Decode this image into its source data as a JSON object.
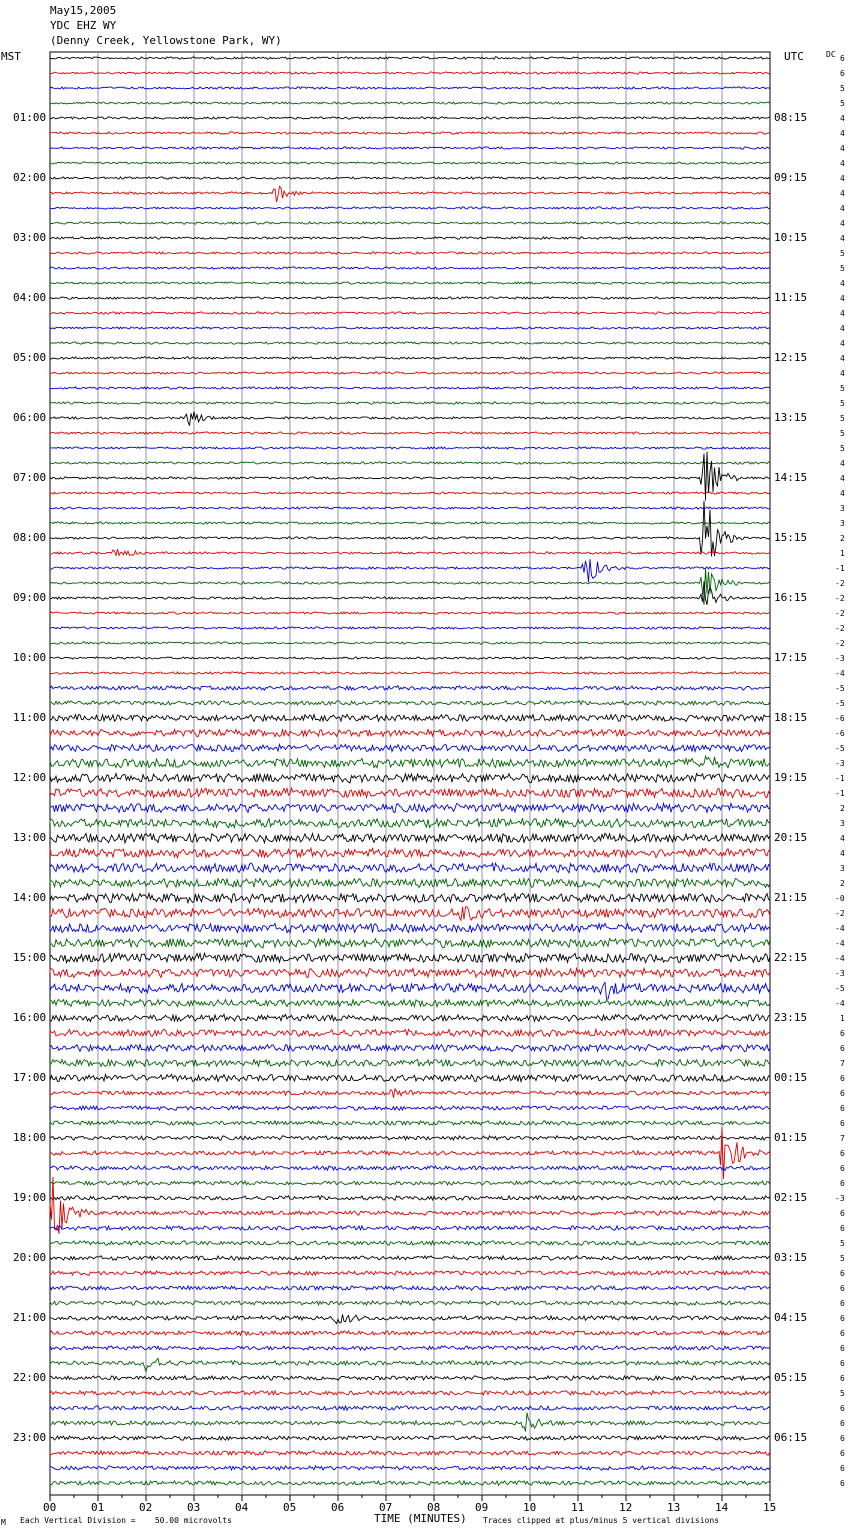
{
  "header": {
    "date": "May15,2005",
    "station": "YDC EHZ WY",
    "location": "(Denny Creek, Yellowstone Park, WY)"
  },
  "left_tz": "MST",
  "right_tz": "UTC",
  "dc_label": "DC",
  "footer": {
    "scale_note": "Each Vertical Division =    50.00 microvolts",
    "xlabel": "TIME (MINUTES)",
    "clip_note": "Traces clipped at plus/minus 5 vertical divisions",
    "corner_mark": "M"
  },
  "colors": {
    "cycle": [
      "#000000",
      "#e00000",
      "#0000e0",
      "#006400"
    ],
    "grid": "#9090b0"
  },
  "chart_data": {
    "type": "line",
    "title": "YDC EHZ WY",
    "xlabel": "TIME (MINUTES)",
    "xlim": [
      0,
      15
    ],
    "x_ticks": [
      "00",
      "01",
      "02",
      "03",
      "04",
      "05",
      "06",
      "07",
      "08",
      "09",
      "10",
      "11",
      "12",
      "13",
      "14",
      "15"
    ],
    "rows_per_hour": 4,
    "left_hour_labels": [
      "01:00",
      "02:00",
      "03:00",
      "04:00",
      "05:00",
      "06:00",
      "07:00",
      "08:00",
      "09:00",
      "10:00",
      "11:00",
      "12:00",
      "13:00",
      "14:00",
      "15:00",
      "16:00",
      "17:00",
      "18:00",
      "19:00",
      "20:00",
      "21:00",
      "22:00",
      "23:00"
    ],
    "right_hour_labels": [
      "08:15",
      "09:15",
      "10:15",
      "11:15",
      "12:15",
      "13:15",
      "14:15",
      "15:15",
      "16:15",
      "17:15",
      "18:15",
      "19:15",
      "20:15",
      "21:15",
      "22:15",
      "23:15",
      "00:15",
      "01:15",
      "02:15",
      "03:15",
      "04:15",
      "05:15",
      "06:15"
    ],
    "dc_offsets": [
      "6",
      "6",
      "5",
      "5",
      "4",
      "4",
      "4",
      "4",
      "4",
      "4",
      "4",
      "4",
      "4",
      "5",
      "5",
      "4",
      "4",
      "4",
      "4",
      "4",
      "4",
      "4",
      "5",
      "5",
      "5",
      "5",
      "5",
      "4",
      "4",
      "4",
      "3",
      "3",
      "2",
      "1",
      "-1",
      "-2",
      "-2",
      "-2",
      "-2",
      "-2",
      "-3",
      "-4",
      "-5",
      "-5",
      "-6",
      "-6",
      "-5",
      "-3",
      "-1",
      "-1",
      "2",
      "3",
      "4",
      "4",
      "3",
      "2",
      "-0",
      "-2",
      "-4",
      "-4",
      "-4",
      "-3",
      "-5",
      "-4",
      "1",
      "6",
      "6",
      "7",
      "6",
      "6",
      "6",
      "6",
      "7",
      "6",
      "6",
      "6",
      "-3",
      "6",
      "6",
      "5",
      "5",
      "6",
      "6",
      "6",
      "6",
      "6",
      "6",
      "6",
      "6",
      "5",
      "6",
      "6",
      "6",
      "6",
      "6",
      "6"
    ],
    "noise_rows": [
      0,
      0,
      0,
      0,
      0,
      0,
      0,
      0,
      0,
      0,
      0,
      0,
      0,
      0,
      0,
      0,
      0,
      0,
      0,
      0,
      0,
      0,
      0,
      0,
      0,
      0,
      0,
      0,
      0,
      0,
      0,
      0,
      0,
      0,
      0,
      0,
      0,
      0,
      0,
      0,
      0,
      0,
      1,
      1,
      2,
      2,
      2,
      3,
      3,
      3,
      3,
      3,
      3,
      3,
      3,
      3,
      3,
      3,
      3,
      3,
      3,
      3,
      3,
      2,
      2,
      2,
      2,
      2,
      2,
      1,
      1,
      1,
      1,
      1,
      1,
      1,
      1,
      1,
      1,
      1,
      1,
      1,
      1,
      1,
      1,
      1,
      1,
      1,
      1,
      1,
      1,
      1,
      1,
      1,
      1,
      1
    ],
    "events": [
      {
        "row": 9,
        "minute": 4.7,
        "amp": 10
      },
      {
        "row": 24,
        "minute": 2.85,
        "amp": 12
      },
      {
        "row": 28,
        "minute": 13.6,
        "amp": 55
      },
      {
        "row": 32,
        "minute": 13.6,
        "amp": 60
      },
      {
        "row": 33,
        "minute": 1.35,
        "amp": 8
      },
      {
        "row": 34,
        "minute": 11.15,
        "amp": 22
      },
      {
        "row": 35,
        "minute": 13.6,
        "amp": 30
      },
      {
        "row": 36,
        "minute": 13.6,
        "amp": 20
      },
      {
        "row": 47,
        "minute": 13.5,
        "amp": 10
      },
      {
        "row": 57,
        "minute": 8.5,
        "amp": 10
      },
      {
        "row": 62,
        "minute": 11.5,
        "amp": 12
      },
      {
        "row": 69,
        "minute": 7.1,
        "amp": 6
      },
      {
        "row": 73,
        "minute": 14.0,
        "amp": 40
      },
      {
        "row": 77,
        "minute": 0.05,
        "amp": 40
      },
      {
        "row": 84,
        "minute": 5.95,
        "amp": 8
      },
      {
        "row": 87,
        "minute": 2.0,
        "amp": 10
      },
      {
        "row": 91,
        "minute": 9.9,
        "amp": 12
      }
    ]
  }
}
